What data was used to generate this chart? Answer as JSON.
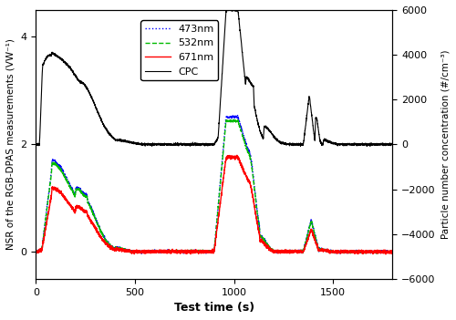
{
  "xlabel": "Test time (s)",
  "ylabel_left": "NSR of the RGB-DPAS measurements (VW⁻¹)",
  "ylabel_right": "Particle number concentration (#/cm⁻³)",
  "xlim": [
    0,
    1800
  ],
  "ylim_left": [
    -0.5,
    4.5
  ],
  "ylim_right": [
    -6000,
    6000
  ],
  "legend_labels": [
    "473nm",
    "532nm",
    "671nm",
    "CPC"
  ],
  "figsize": [
    5.0,
    3.51
  ],
  "dpi": 100,
  "yticks_left": [
    0,
    2,
    4
  ],
  "yticks_right": [
    -6000,
    -4000,
    -2000,
    0,
    2000,
    4000,
    6000
  ],
  "xticks": [
    0,
    500,
    1000,
    1500
  ]
}
